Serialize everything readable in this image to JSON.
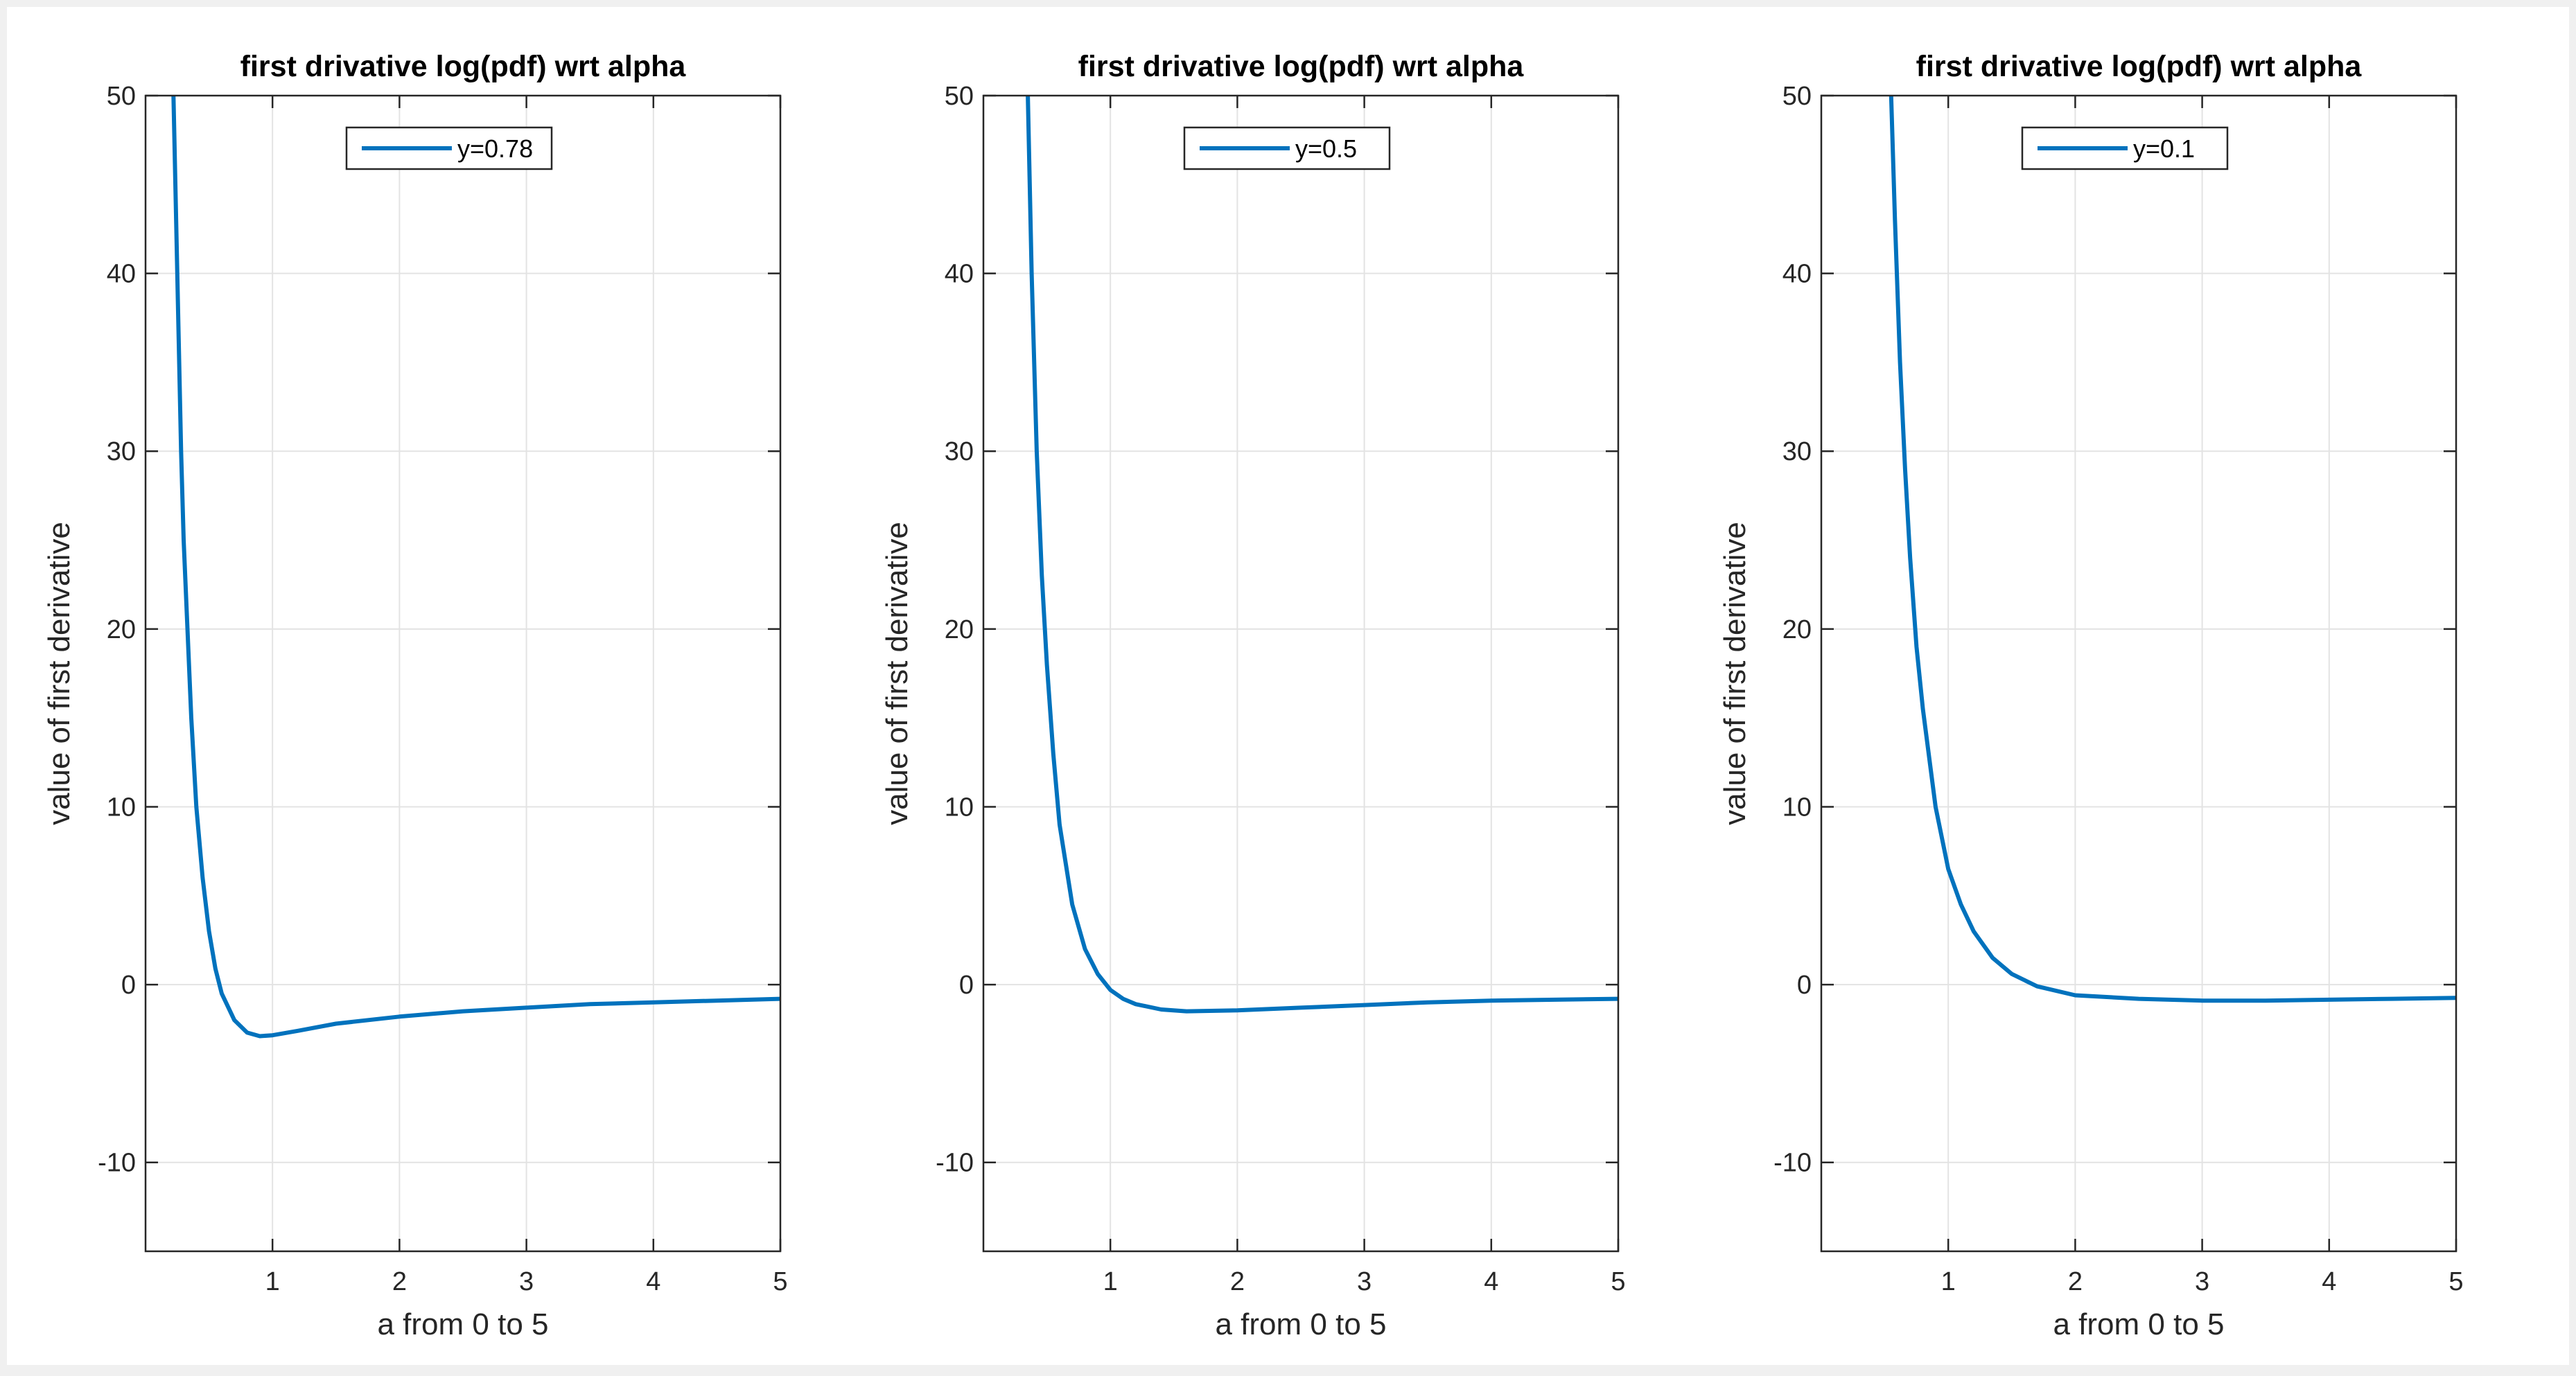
{
  "figure": {
    "background": "#ffffff",
    "window_background": "#f0f0f0",
    "line_color": "#0072bd"
  },
  "chart_data": [
    {
      "type": "line",
      "title": "first drivative log(pdf) wrt alpha",
      "xlabel": "a from 0 to 5",
      "ylabel": "value of first derivative",
      "xlim": [
        0,
        5
      ],
      "ylim": [
        -15,
        50
      ],
      "xticks": [
        1,
        2,
        3,
        4,
        5
      ],
      "yticks": [
        -10,
        0,
        10,
        20,
        30,
        40,
        50
      ],
      "grid": true,
      "legend_position": "top-center",
      "series": [
        {
          "name": "y=0.78",
          "x": [
            0.22,
            0.25,
            0.28,
            0.3,
            0.33,
            0.36,
            0.4,
            0.45,
            0.5,
            0.55,
            0.6,
            0.7,
            0.8,
            0.9,
            1.0,
            1.2,
            1.5,
            2.0,
            2.5,
            3.0,
            3.5,
            4.0,
            4.5,
            5.0
          ],
          "y": [
            50,
            40,
            30,
            25,
            20,
            15,
            10,
            6,
            3,
            0.9,
            -0.5,
            -2.0,
            -2.7,
            -2.9,
            -2.85,
            -2.6,
            -2.2,
            -1.8,
            -1.5,
            -1.3,
            -1.1,
            -1.0,
            -0.9,
            -0.8
          ]
        }
      ]
    },
    {
      "type": "line",
      "title": "first drivative log(pdf) wrt alpha",
      "xlabel": "a from 0 to 5",
      "ylabel": "value of first derivative",
      "xlim": [
        0,
        5
      ],
      "ylim": [
        -15,
        50
      ],
      "xticks": [
        1,
        2,
        3,
        4,
        5
      ],
      "yticks": [
        -10,
        0,
        10,
        20,
        30,
        40,
        50
      ],
      "grid": true,
      "legend_position": "top-center",
      "series": [
        {
          "name": "y=0.5",
          "x": [
            0.35,
            0.38,
            0.42,
            0.46,
            0.5,
            0.55,
            0.6,
            0.7,
            0.8,
            0.9,
            1.0,
            1.1,
            1.2,
            1.4,
            1.6,
            2.0,
            2.5,
            3.0,
            3.5,
            4.0,
            4.5,
            5.0
          ],
          "y": [
            50,
            40,
            30,
            23,
            18,
            13,
            9,
            4.5,
            2,
            0.6,
            -0.3,
            -0.8,
            -1.1,
            -1.4,
            -1.5,
            -1.45,
            -1.3,
            -1.15,
            -1.0,
            -0.9,
            -0.85,
            -0.8
          ]
        }
      ]
    },
    {
      "type": "line",
      "title": "first drivative log(pdf) wrt alpha",
      "xlabel": "a from 0 to 5",
      "ylabel": "value of first derivative",
      "xlim": [
        0,
        5
      ],
      "ylim": [
        -15,
        50
      ],
      "xticks": [
        1,
        2,
        3,
        4,
        5
      ],
      "yticks": [
        -10,
        0,
        10,
        20,
        30,
        40,
        50
      ],
      "grid": true,
      "legend_position": "top-center",
      "series": [
        {
          "name": "y=0.1",
          "x": [
            0.55,
            0.58,
            0.62,
            0.66,
            0.7,
            0.75,
            0.8,
            0.9,
            1.0,
            1.1,
            1.2,
            1.35,
            1.5,
            1.7,
            2.0,
            2.5,
            3.0,
            3.5,
            4.0,
            4.5,
            5.0
          ],
          "y": [
            50,
            43,
            35,
            29,
            24,
            19,
            15.5,
            10,
            6.5,
            4.5,
            3,
            1.5,
            0.6,
            -0.1,
            -0.6,
            -0.8,
            -0.9,
            -0.9,
            -0.85,
            -0.8,
            -0.75
          ]
        }
      ]
    }
  ]
}
